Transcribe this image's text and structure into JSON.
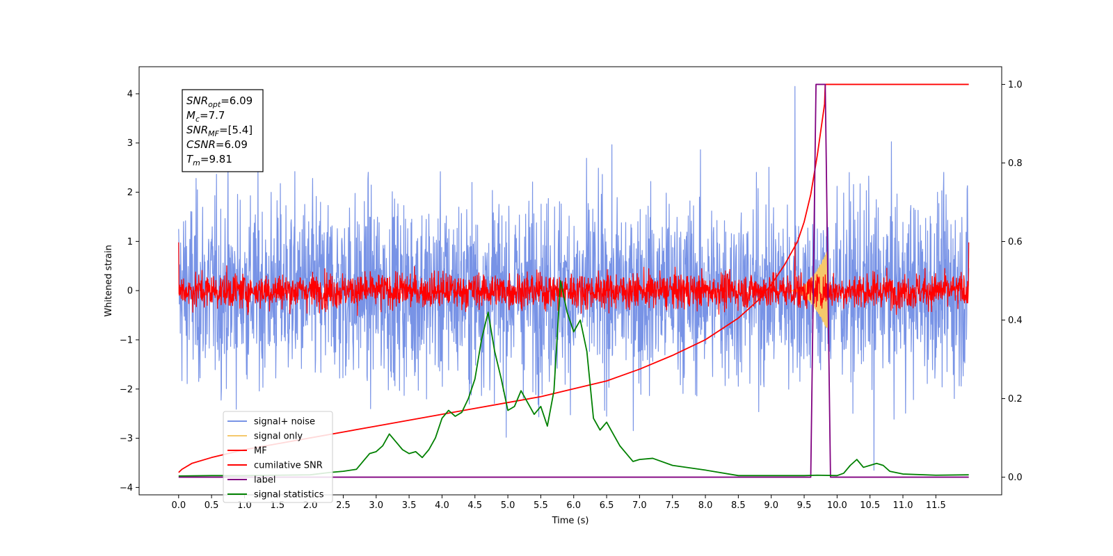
{
  "chart_data": {
    "type": "line",
    "title": "",
    "xlabel": "Time (s)",
    "ylabel": "Whitened strain",
    "ylabel_right": "",
    "xlim": [
      -0.6,
      12.5
    ],
    "ylim": [
      -4.15,
      4.55
    ],
    "ylim_right": [
      -0.045,
      1.045
    ],
    "x_ticks": [
      "0.0",
      "0.5",
      "1.0",
      "1.5",
      "2.0",
      "2.5",
      "3.0",
      "3.5",
      "4.0",
      "4.5",
      "5.0",
      "5.5",
      "6.0",
      "6.5",
      "7.0",
      "7.5",
      "8.0",
      "8.5",
      "9.0",
      "9.5",
      "10.0",
      "10.5",
      "11.0",
      "11.5"
    ],
    "y_ticks_left": [
      "4",
      "3",
      "2",
      "1",
      "0",
      "−1",
      "−2",
      "−3",
      "−4"
    ],
    "y_ticks_right": [
      "1.0",
      "0.8",
      "0.6",
      "0.4",
      "0.2",
      "0.0"
    ],
    "grid": false,
    "legend": {
      "placement": "lower-left",
      "entries": [
        {
          "name": "signal+ noise",
          "color": "#7893e6"
        },
        {
          "name": "signal only",
          "color": "#f5c86b"
        },
        {
          "name": "MF",
          "color": "#ff0000"
        },
        {
          "name": "cumilative SNR",
          "color": "#ff0000"
        },
        {
          "name": "label",
          "color": "#800080"
        },
        {
          "name": "signal statistics",
          "color": "#008000"
        }
      ]
    },
    "annotation": {
      "lines": [
        {
          "base": "SNR",
          "sub": "opt",
          "rest": "=6.09"
        },
        {
          "base": "M",
          "sub": "c",
          "rest": "=7.7"
        },
        {
          "base": "SNR",
          "sub": "MF",
          "rest": "=[5.4]"
        },
        {
          "base": "CSNR",
          "sub": "",
          "rest": "=6.09"
        },
        {
          "base": "T",
          "sub": "m",
          "rest": "=9.81"
        }
      ]
    },
    "series": [
      {
        "name": "signal+ noise",
        "axis": "left",
        "color": "#7893e6",
        "kind": "noise",
        "x_range": [
          0,
          12
        ],
        "amplitude_std": 0.95,
        "spikes_y": [
          4.15,
          -3.65
        ]
      },
      {
        "name": "signal only",
        "axis": "left",
        "color": "#f5c86b",
        "kind": "chirp",
        "x_range": [
          9.3,
          9.85
        ],
        "peak_y": 0.8
      },
      {
        "name": "MF",
        "axis": "left",
        "color": "#ff0000",
        "kind": "noise",
        "x_range": [
          0,
          12
        ],
        "amplitude_std": 0.18,
        "spikes_y": [
          0.98,
          -0.3
        ]
      },
      {
        "name": "cumilative SNR",
        "axis": "right",
        "color": "#ff0000",
        "x": [
          0.0,
          0.05,
          0.2,
          0.5,
          1.0,
          1.5,
          2.0,
          2.5,
          3.0,
          3.5,
          4.0,
          4.5,
          5.0,
          5.5,
          6.0,
          6.5,
          7.0,
          7.5,
          8.0,
          8.5,
          8.8,
          9.0,
          9.2,
          9.4,
          9.5,
          9.6,
          9.7,
          9.81,
          9.82,
          10.0,
          11.0,
          12.0
        ],
        "y": [
          0.012,
          0.02,
          0.035,
          0.05,
          0.07,
          0.085,
          0.1,
          0.115,
          0.13,
          0.145,
          0.16,
          0.175,
          0.19,
          0.205,
          0.225,
          0.245,
          0.275,
          0.31,
          0.35,
          0.405,
          0.45,
          0.49,
          0.54,
          0.6,
          0.65,
          0.72,
          0.82,
          0.95,
          1.0,
          1.0,
          1.0,
          1.0
        ]
      },
      {
        "name": "label",
        "axis": "right",
        "color": "#800080",
        "x": [
          0.0,
          9.6,
          9.68,
          9.82,
          9.9,
          12.0
        ],
        "y": [
          0.0,
          0.0,
          1.0,
          1.0,
          0.0,
          0.0
        ]
      },
      {
        "name": "signal statistics",
        "axis": "right",
        "color": "#008000",
        "x": [
          0.0,
          0.5,
          1.0,
          1.5,
          2.0,
          2.3,
          2.5,
          2.7,
          2.8,
          2.9,
          3.0,
          3.1,
          3.2,
          3.3,
          3.4,
          3.5,
          3.6,
          3.7,
          3.8,
          3.9,
          4.0,
          4.1,
          4.2,
          4.3,
          4.4,
          4.5,
          4.6,
          4.7,
          4.8,
          4.9,
          5.0,
          5.1,
          5.2,
          5.3,
          5.4,
          5.5,
          5.6,
          5.7,
          5.8,
          5.9,
          6.0,
          6.1,
          6.2,
          6.3,
          6.4,
          6.5,
          6.6,
          6.7,
          6.8,
          6.9,
          7.0,
          7.2,
          7.5,
          8.0,
          8.5,
          9.0,
          9.5,
          9.7,
          10.0,
          10.1,
          10.2,
          10.3,
          10.4,
          10.5,
          10.6,
          10.7,
          10.8,
          11.0,
          11.5,
          12.0
        ],
        "y": [
          0.003,
          0.004,
          0.004,
          0.005,
          0.006,
          0.012,
          0.015,
          0.02,
          0.04,
          0.06,
          0.065,
          0.08,
          0.11,
          0.09,
          0.07,
          0.06,
          0.065,
          0.05,
          0.07,
          0.1,
          0.15,
          0.17,
          0.155,
          0.165,
          0.2,
          0.25,
          0.35,
          0.42,
          0.32,
          0.25,
          0.17,
          0.18,
          0.22,
          0.19,
          0.16,
          0.18,
          0.13,
          0.22,
          0.5,
          0.42,
          0.37,
          0.4,
          0.32,
          0.15,
          0.12,
          0.14,
          0.11,
          0.08,
          0.06,
          0.04,
          0.045,
          0.048,
          0.03,
          0.018,
          0.004,
          0.004,
          0.004,
          0.005,
          0.004,
          0.01,
          0.03,
          0.045,
          0.025,
          0.03,
          0.035,
          0.03,
          0.015,
          0.008,
          0.005,
          0.006
        ]
      }
    ]
  }
}
